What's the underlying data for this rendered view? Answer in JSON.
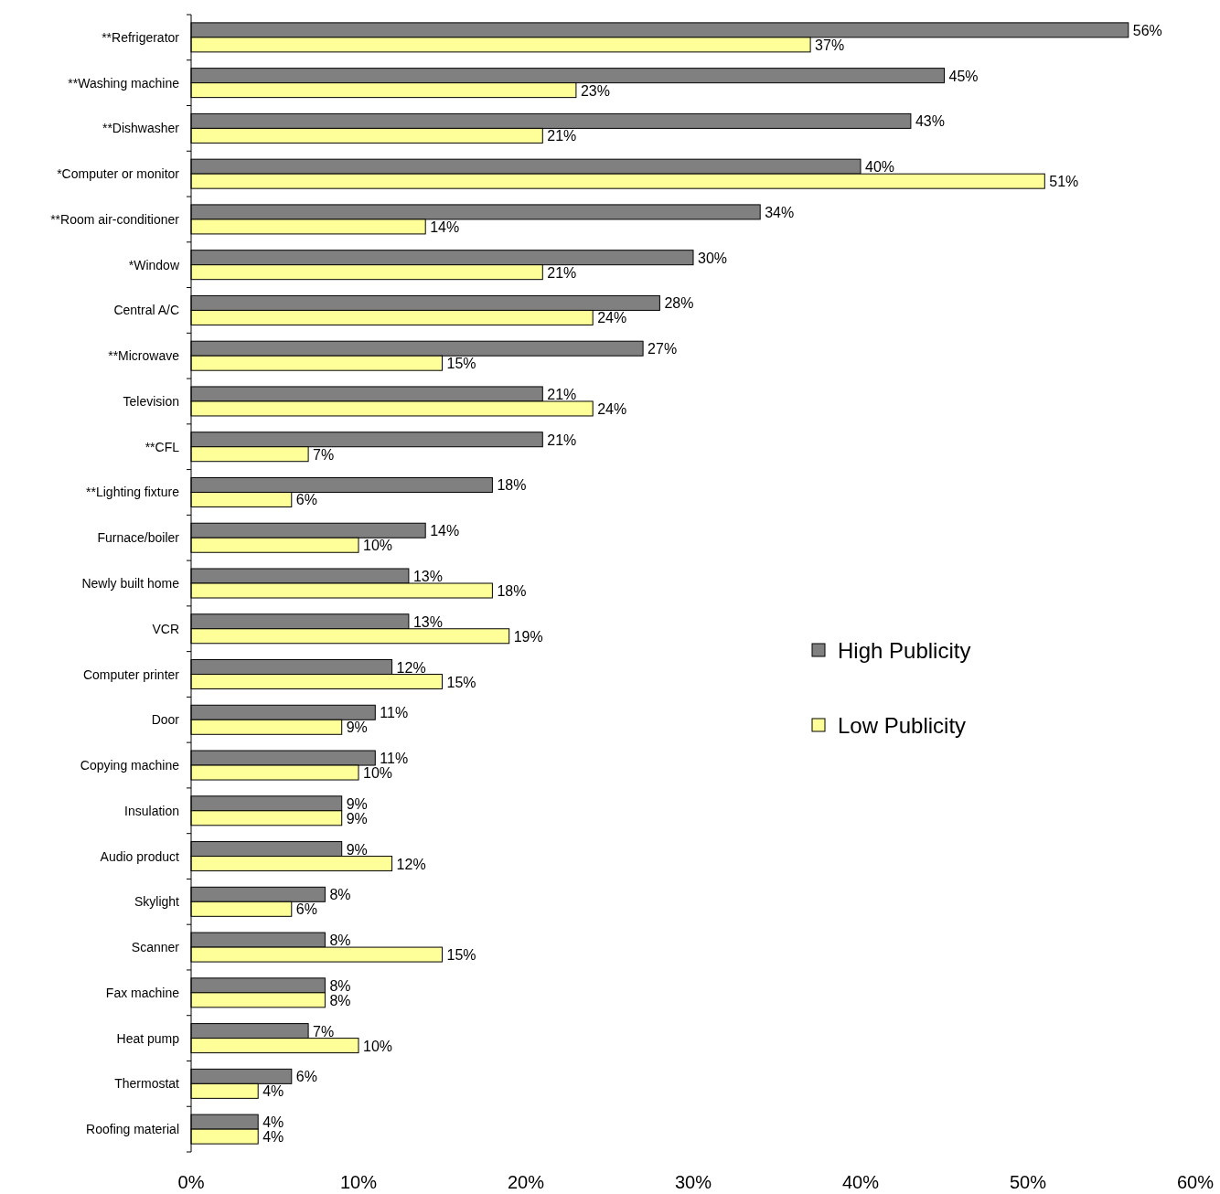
{
  "chart_data": {
    "type": "bar",
    "orientation": "horizontal",
    "categories": [
      "**Refrigerator",
      "**Washing machine",
      "**Dishwasher",
      "*Computer or monitor",
      "**Room air-conditioner",
      "*Window",
      "Central A/C",
      "**Microwave",
      "Television",
      "**CFL",
      "**Lighting fixture",
      "Furnace/boiler",
      "Newly built home",
      "VCR",
      "Computer printer",
      "Door",
      "Copying machine",
      "Insulation",
      "Audio product",
      "Skylight",
      "Scanner",
      "Fax machine",
      "Heat pump",
      "Thermostat",
      "Roofing material"
    ],
    "series": [
      {
        "name": "High Publicity",
        "color": "#808080",
        "values": [
          56,
          45,
          43,
          40,
          34,
          30,
          28,
          27,
          21,
          21,
          18,
          14,
          13,
          13,
          12,
          11,
          11,
          9,
          9,
          8,
          8,
          8,
          7,
          6,
          4
        ],
        "value_labels": [
          "56%",
          "45%",
          "43%",
          "40%",
          "34%",
          "30%",
          "28%",
          "27%",
          "21%",
          "21%",
          "18%",
          "14%",
          "13%",
          "13%",
          "12%",
          "11%",
          "11%",
          "9%",
          "9%",
          "8%",
          "8%",
          "8%",
          "7%",
          "6%",
          "4%"
        ]
      },
      {
        "name": "Low Publicity",
        "color": "#ffff99",
        "values": [
          37,
          23,
          21,
          51,
          14,
          21,
          24,
          15,
          24,
          7,
          6,
          10,
          18,
          19,
          15,
          9,
          10,
          9,
          12,
          6,
          15,
          8,
          10,
          4,
          4
        ],
        "value_labels": [
          "37%",
          "23%",
          "21%",
          "51%",
          "14%",
          "21%",
          "24%",
          "15%",
          "24%",
          "7%",
          "6%",
          "10%",
          "18%",
          "19%",
          "15%",
          "9%",
          "10%",
          "9%",
          "12%",
          "6%",
          "15%",
          "8%",
          "10%",
          "4%",
          "4%"
        ]
      }
    ],
    "xlim": [
      0,
      60
    ],
    "xticks": [
      {
        "value": 0,
        "label": "0%"
      },
      {
        "value": 10,
        "label": "10%"
      },
      {
        "value": 20,
        "label": "20%"
      },
      {
        "value": 30,
        "label": "30%"
      },
      {
        "value": 40,
        "label": "40%"
      },
      {
        "value": 50,
        "label": "50%"
      },
      {
        "value": 60,
        "label": "60%"
      }
    ],
    "legend": "right",
    "grid": false
  }
}
